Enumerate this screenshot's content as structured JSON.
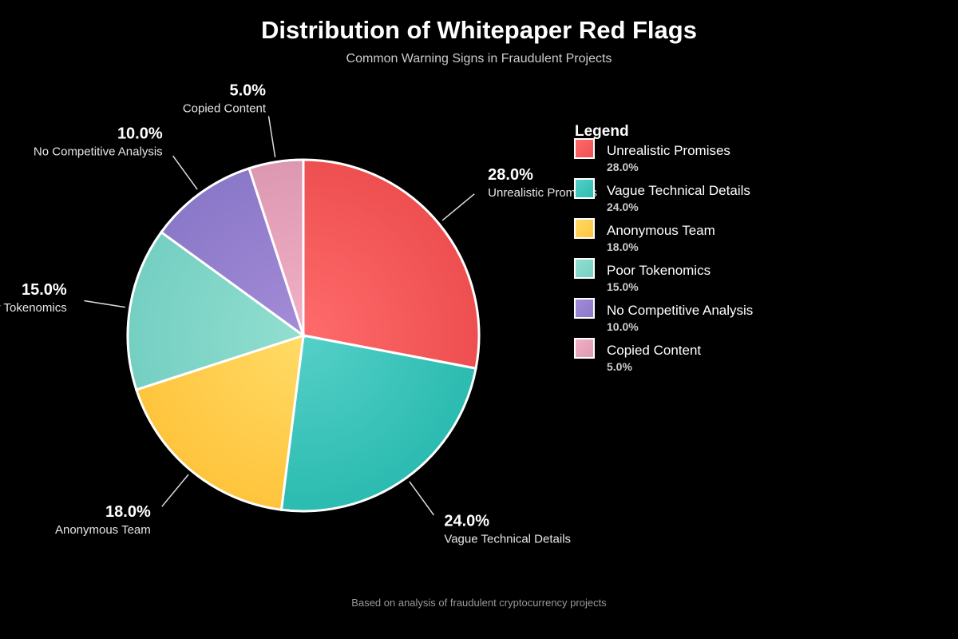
{
  "chart_data": {
    "type": "pie",
    "title": "Distribution of Whitepaper Red Flags",
    "subtitle": "Common Warning Signs in Fraudulent Projects",
    "footer": "Based on analysis of fraudulent cryptocurrency projects",
    "legend_title": "Legend",
    "legend_placement": "right",
    "slices": [
      {
        "label": "Unrealistic Promises",
        "value": 28.0,
        "display": "28.0%",
        "colors": [
          "#ff6b6b",
          "#ee4f50"
        ]
      },
      {
        "label": "Vague Technical Details",
        "value": 24.0,
        "display": "24.0%",
        "colors": [
          "#55d0c8",
          "#2bbbb0"
        ]
      },
      {
        "label": "Anonymous Team",
        "value": 18.0,
        "display": "18.0%",
        "colors": [
          "#ffdb66",
          "#ffc43d"
        ]
      },
      {
        "label": "Poor Tokenomics",
        "value": 15.0,
        "display": "15.0%",
        "colors": [
          "#92dfd0",
          "#74cfc2"
        ]
      },
      {
        "label": "No Competitive Analysis",
        "value": 10.0,
        "display": "10.0%",
        "colors": [
          "#a48cd8",
          "#8a78c8"
        ]
      },
      {
        "label": "Copied Content",
        "value": 5.0,
        "display": "5.0%",
        "colors": [
          "#f2b1c8",
          "#dc98b0"
        ]
      }
    ]
  }
}
